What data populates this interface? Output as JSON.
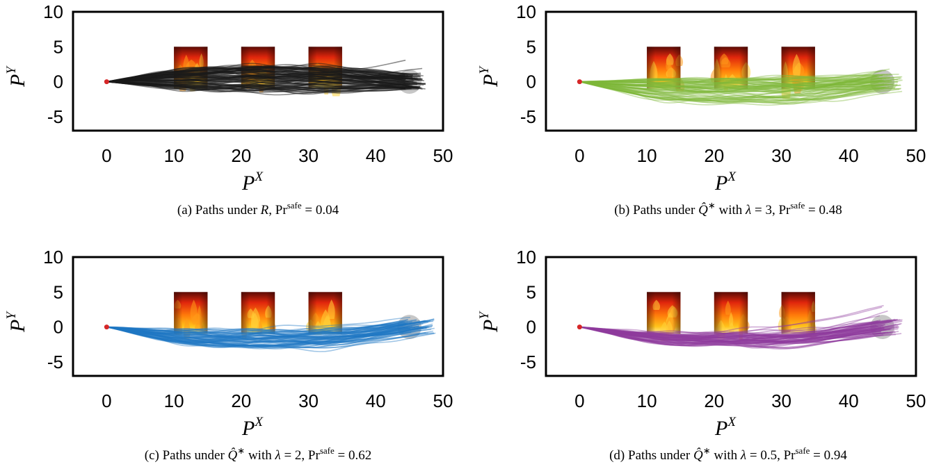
{
  "chart_data": [
    {
      "type": "line",
      "panel": "a",
      "caption": {
        "prefix": "(a) Paths under ",
        "policy": "R",
        "mid": "",
        "lambda": "",
        "pr": "0.04"
      },
      "series_color": "#1a1a1a",
      "xlabel": "P",
      "xlabel_sup": "X",
      "ylabel": "P",
      "ylabel_sup": "Y",
      "xlim": [
        -5,
        50
      ],
      "ylim": [
        -7,
        10
      ],
      "xticks": [
        "0",
        "10",
        "20",
        "30",
        "40",
        "50"
      ],
      "yticks": [
        "10",
        "5",
        "0",
        "-5"
      ],
      "start": [
        0,
        0
      ],
      "goal": {
        "x": 45,
        "y": 0,
        "r": 1.8
      },
      "obstacles": [
        {
          "x0": 10,
          "x1": 15,
          "y0": -1,
          "y1": 5
        },
        {
          "x0": 20,
          "x1": 25,
          "y0": -1,
          "y1": 5
        },
        {
          "x0": 30,
          "x1": 35,
          "y0": -1,
          "y1": 5
        }
      ],
      "paths": {
        "count": 90,
        "mean_offset": 0.5,
        "spread": 1.9,
        "end_x": [
          44,
          47.5
        ]
      }
    },
    {
      "type": "line",
      "panel": "b",
      "caption": {
        "prefix": "(b) Paths under ",
        "policy": "Q̂",
        "mid": " with ",
        "lambda": "3",
        "pr": "0.48"
      },
      "series_color": "#7fb83a",
      "xlabel": "P",
      "xlabel_sup": "X",
      "ylabel": "P",
      "ylabel_sup": "Y",
      "xlim": [
        -5,
        50
      ],
      "ylim": [
        -7,
        10
      ],
      "xticks": [
        "0",
        "10",
        "20",
        "30",
        "40",
        "50"
      ],
      "yticks": [
        "10",
        "5",
        "0",
        "-5"
      ],
      "start": [
        0,
        0
      ],
      "goal": {
        "x": 45,
        "y": 0,
        "r": 1.8
      },
      "obstacles": [
        {
          "x0": 10,
          "x1": 15,
          "y0": -1,
          "y1": 5
        },
        {
          "x0": 20,
          "x1": 25,
          "y0": -1,
          "y1": 5
        },
        {
          "x0": 30,
          "x1": 35,
          "y0": -1,
          "y1": 5
        }
      ],
      "paths": {
        "count": 70,
        "mean_offset": -1.4,
        "spread": 1.9,
        "end_x": [
          44,
          48
        ]
      }
    },
    {
      "type": "line",
      "panel": "c",
      "caption": {
        "prefix": "(c) Paths under ",
        "policy": "Q̂",
        "mid": " with ",
        "lambda": "2",
        "pr": "0.62"
      },
      "series_color": "#1f77c4",
      "xlabel": "P",
      "xlabel_sup": "X",
      "ylabel": "P",
      "ylabel_sup": "Y",
      "xlim": [
        -5,
        50
      ],
      "ylim": [
        -7,
        10
      ],
      "xticks": [
        "0",
        "10",
        "20",
        "30",
        "40",
        "50"
      ],
      "yticks": [
        "10",
        "5",
        "0",
        "-5"
      ],
      "start": [
        0,
        0
      ],
      "goal": {
        "x": 45,
        "y": 0,
        "r": 1.8
      },
      "obstacles": [
        {
          "x0": 10,
          "x1": 15,
          "y0": -1,
          "y1": 5
        },
        {
          "x0": 20,
          "x1": 25,
          "y0": -1,
          "y1": 5
        },
        {
          "x0": 30,
          "x1": 35,
          "y0": -1,
          "y1": 5
        }
      ],
      "paths": {
        "count": 70,
        "mean_offset": -1.9,
        "spread": 1.3,
        "end_x": [
          44,
          49
        ]
      }
    },
    {
      "type": "line",
      "panel": "d",
      "caption": {
        "prefix": "(d) Paths under ",
        "policy": "Q̂",
        "mid": " with ",
        "lambda": "0.5",
        "pr": "0.94"
      },
      "series_color": "#8e3c9e",
      "xlabel": "P",
      "xlabel_sup": "X",
      "ylabel": "P",
      "ylabel_sup": "Y",
      "xlim": [
        -5,
        50
      ],
      "ylim": [
        -7,
        10
      ],
      "xticks": [
        "0",
        "10",
        "20",
        "30",
        "40",
        "50"
      ],
      "yticks": [
        "10",
        "5",
        "0",
        "-5"
      ],
      "start": [
        0,
        0
      ],
      "goal": {
        "x": 45,
        "y": 0,
        "r": 1.8
      },
      "obstacles": [
        {
          "x0": 10,
          "x1": 15,
          "y0": -1,
          "y1": 5
        },
        {
          "x0": 20,
          "x1": 25,
          "y0": -1,
          "y1": 5
        },
        {
          "x0": 30,
          "x1": 35,
          "y0": -1,
          "y1": 5
        }
      ],
      "paths": {
        "count": 70,
        "mean_offset": -2.1,
        "spread": 1.0,
        "end_x": [
          44,
          48
        ]
      }
    }
  ],
  "caption_common": {
    "pr_label": "Pr",
    "pr_sup": "safe",
    "eq": " = ",
    "lambda_symbol": "λ",
    "star": "∗",
    "comma": ", "
  },
  "colors": {
    "start_marker": "#d62728",
    "goal_region": "#bdbdbd",
    "frame": "#000000"
  }
}
